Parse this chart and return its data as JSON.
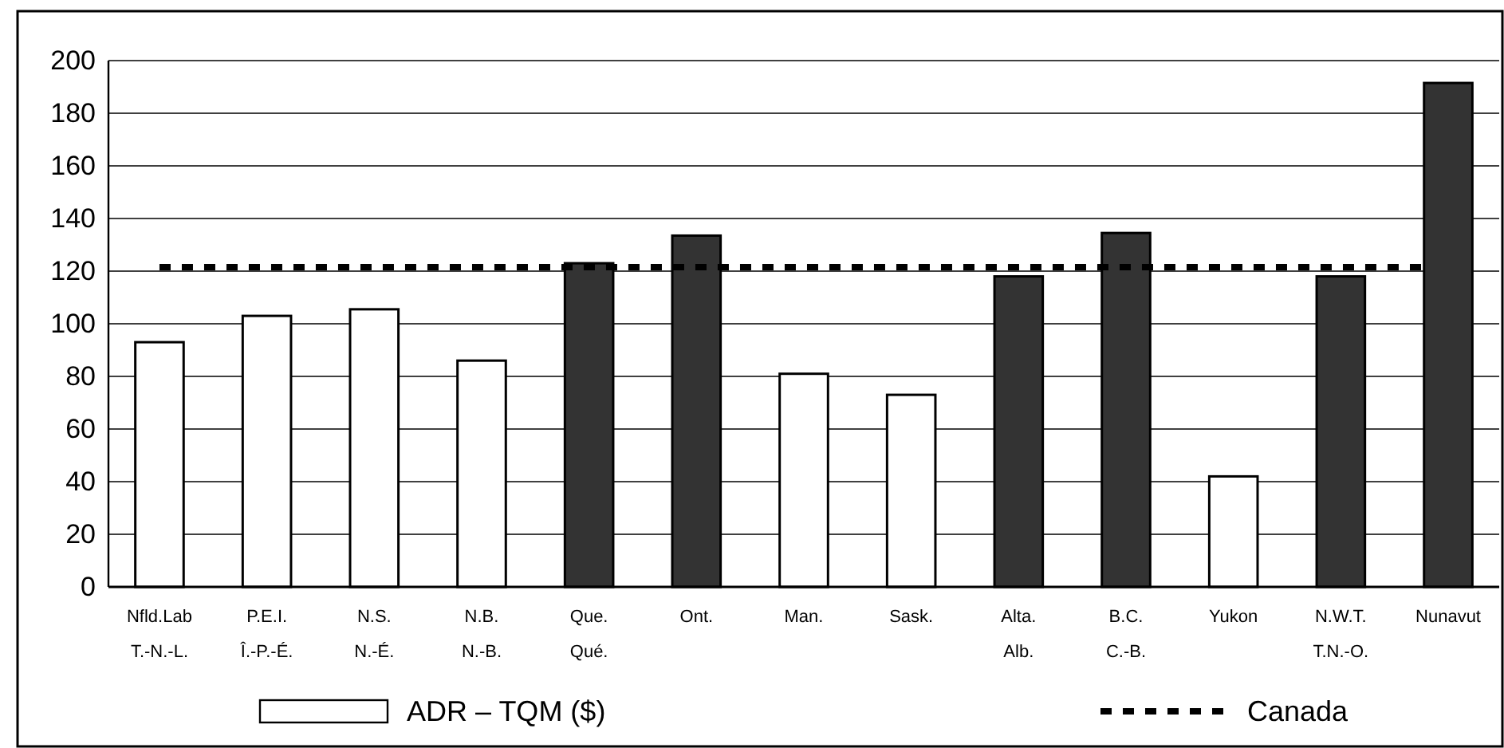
{
  "chart_data": {
    "type": "bar",
    "categories": [
      "Nfld.Lab\nT.-N.-L.",
      "P.E.I.\nÎ.-P.-É.",
      "N.S.\nN.-É.",
      "N.B.\nN.-B.",
      "Que.\nQué.",
      "Ont.",
      "Man.",
      "Sask.",
      "Alta.\nAlb.",
      "B.C.\nC.-B.",
      "Yukon",
      "N.W.T.\nT.N.-O.",
      "Nunavut"
    ],
    "series": [
      {
        "name": "ADR – TQM ($)",
        "color": "#ffffff",
        "colors": [
          "#ffffff",
          "#ffffff",
          "#ffffff",
          "#ffffff",
          "#333333",
          "#333333",
          "#ffffff",
          "#ffffff",
          "#333333",
          "#333333",
          "#ffffff",
          "#333333",
          "#333333"
        ],
        "values": [
          93,
          103,
          105.5,
          86,
          123,
          133.5,
          81,
          73,
          118,
          134.5,
          42,
          118,
          191.5
        ]
      }
    ],
    "ylim": [
      0,
      200
    ],
    "yticks": [
      0,
      20,
      40,
      60,
      80,
      100,
      120,
      140,
      160,
      180,
      200
    ],
    "ref_lines": [
      {
        "axis": "y",
        "value": 121.5,
        "label": "Canada",
        "color": "#000000",
        "line_style": "dotted"
      }
    ],
    "grid": "y",
    "legend": "bottom"
  }
}
